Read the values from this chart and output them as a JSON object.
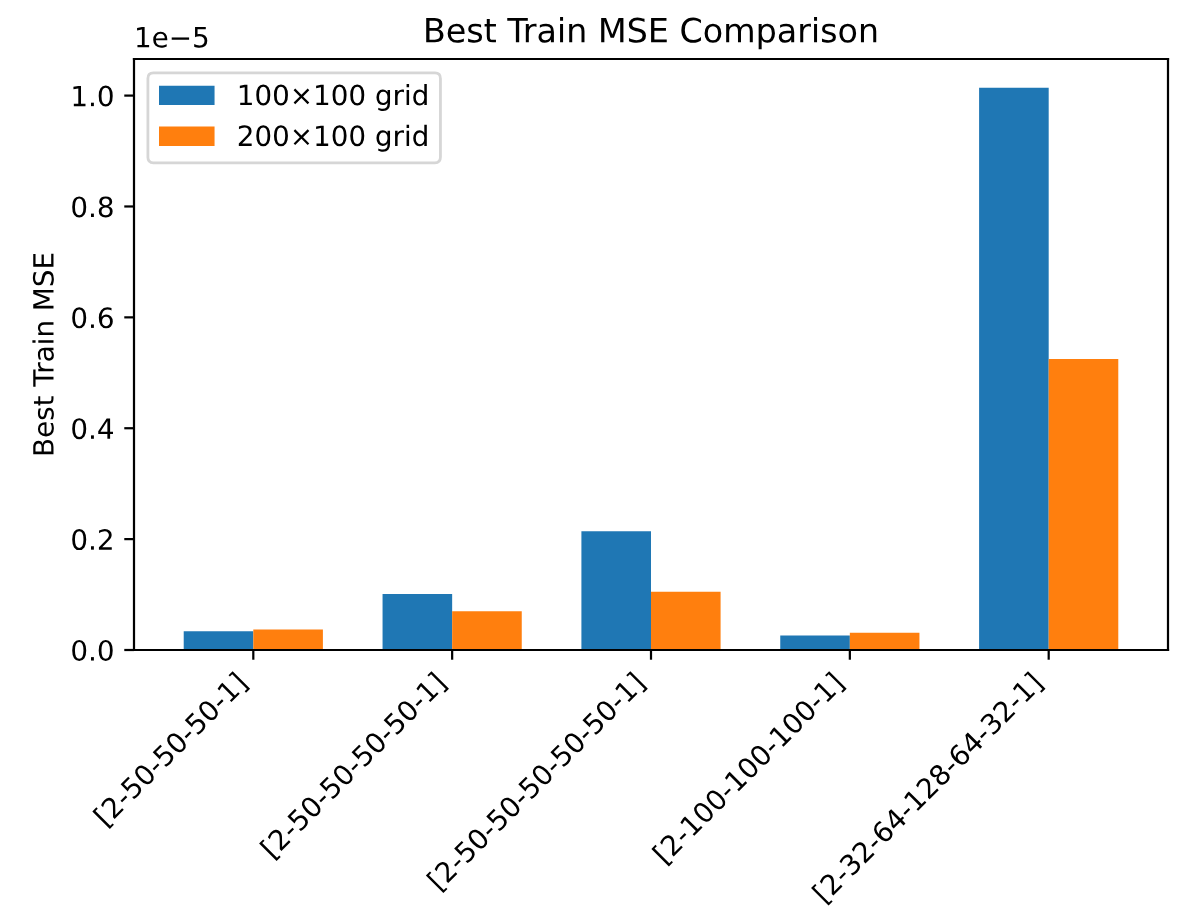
{
  "chart_data": {
    "type": "bar",
    "title": "Best Train MSE Comparison",
    "ylabel": "Best Train MSE",
    "categories": [
      "[2-50-50-50-1]",
      "[2-50-50-50-50-1]",
      "[2-50-50-50-50-50-1]",
      "[2-100-100-100-1]",
      "[2-32-64-128-64-32-1]"
    ],
    "series": [
      {
        "name": "100×100 grid",
        "color": "#1f77b4",
        "values": [
          0.034,
          0.101,
          0.214,
          0.026,
          1.014
        ]
      },
      {
        "name": "200×100 grid",
        "color": "#ff7f0e",
        "values": [
          0.037,
          0.07,
          0.105,
          0.031,
          0.525
        ]
      }
    ],
    "ylim": [
      0,
      1.066
    ],
    "yticks": [
      {
        "value": 0,
        "label": "0.0"
      },
      0.2,
      0.4,
      0.6,
      0.8,
      {
        "value": 1,
        "label": "1.0"
      }
    ],
    "annotations": [
      "1e−5"
    ],
    "legend": "top left",
    "grid": false
  }
}
